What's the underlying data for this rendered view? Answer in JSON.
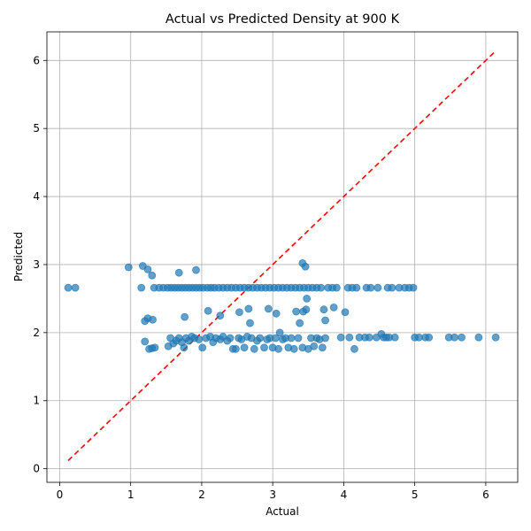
{
  "chart_data": {
    "type": "scatter",
    "title": "Actual vs Predicted Density at 900 K",
    "xlabel": "Actual",
    "ylabel": "Predicted",
    "xlim": [
      -0.18,
      6.45
    ],
    "ylim": [
      -0.2,
      6.42
    ],
    "xticks": [
      "0",
      "1",
      "2",
      "3",
      "4",
      "5",
      "6"
    ],
    "yticks": [
      "0",
      "1",
      "2",
      "3",
      "4",
      "5",
      "6"
    ],
    "grid": true,
    "point_color": "#1f77b4",
    "reference_line": {
      "style": "dashed",
      "color": "#ff0000",
      "from": [
        0.12,
        0.12
      ],
      "to": [
        6.14,
        6.14
      ]
    },
    "series": [
      {
        "points": [
          [
            0.12,
            2.66
          ],
          [
            0.22,
            2.66
          ],
          [
            0.97,
            2.96
          ],
          [
            1.15,
            2.66
          ],
          [
            1.17,
            2.98
          ],
          [
            1.24,
            2.93
          ],
          [
            1.3,
            2.84
          ],
          [
            1.33,
            2.66
          ],
          [
            1.4,
            2.66
          ],
          [
            1.46,
            2.66
          ],
          [
            1.52,
            2.66
          ],
          [
            1.57,
            2.66
          ],
          [
            1.62,
            2.66
          ],
          [
            1.67,
            2.66
          ],
          [
            1.72,
            2.66
          ],
          [
            1.77,
            2.66
          ],
          [
            1.82,
            2.66
          ],
          [
            1.87,
            2.66
          ],
          [
            1.92,
            2.66
          ],
          [
            1.97,
            2.66
          ],
          [
            2.02,
            2.66
          ],
          [
            2.08,
            2.66
          ],
          [
            2.13,
            2.66
          ],
          [
            2.18,
            2.66
          ],
          [
            2.24,
            2.66
          ],
          [
            2.3,
            2.66
          ],
          [
            2.36,
            2.66
          ],
          [
            2.42,
            2.66
          ],
          [
            2.48,
            2.66
          ],
          [
            2.54,
            2.66
          ],
          [
            2.6,
            2.66
          ],
          [
            2.66,
            2.66
          ],
          [
            2.72,
            2.66
          ],
          [
            2.78,
            2.66
          ],
          [
            2.84,
            2.66
          ],
          [
            2.9,
            2.66
          ],
          [
            2.96,
            2.66
          ],
          [
            3.02,
            2.66
          ],
          [
            3.08,
            2.66
          ],
          [
            3.14,
            2.66
          ],
          [
            3.2,
            2.66
          ],
          [
            3.26,
            2.66
          ],
          [
            3.32,
            2.66
          ],
          [
            3.38,
            2.66
          ],
          [
            3.44,
            2.66
          ],
          [
            3.5,
            2.66
          ],
          [
            3.56,
            2.66
          ],
          [
            3.62,
            2.66
          ],
          [
            3.68,
            2.66
          ],
          [
            3.78,
            2.66
          ],
          [
            3.84,
            2.66
          ],
          [
            3.9,
            2.66
          ],
          [
            4.06,
            2.66
          ],
          [
            4.12,
            2.66
          ],
          [
            4.18,
            2.66
          ],
          [
            4.32,
            2.66
          ],
          [
            4.38,
            2.66
          ],
          [
            4.48,
            2.66
          ],
          [
            4.62,
            2.66
          ],
          [
            4.68,
            2.66
          ],
          [
            4.78,
            2.66
          ],
          [
            4.86,
            2.66
          ],
          [
            4.92,
            2.66
          ],
          [
            4.98,
            2.66
          ],
          [
            1.68,
            2.88
          ],
          [
            1.92,
            2.92
          ],
          [
            3.42,
            3.02
          ],
          [
            3.46,
            2.97
          ],
          [
            3.48,
            2.5
          ],
          [
            1.2,
            2.17
          ],
          [
            1.24,
            2.21
          ],
          [
            1.31,
            2.19
          ],
          [
            1.76,
            2.23
          ],
          [
            2.09,
            2.32
          ],
          [
            2.26,
            2.25
          ],
          [
            2.53,
            2.3
          ],
          [
            2.66,
            2.35
          ],
          [
            2.68,
            2.14
          ],
          [
            2.94,
            2.35
          ],
          [
            3.05,
            2.28
          ],
          [
            3.33,
            2.31
          ],
          [
            3.38,
            2.14
          ],
          [
            3.43,
            2.31
          ],
          [
            3.47,
            2.34
          ],
          [
            3.72,
            2.34
          ],
          [
            3.74,
            2.18
          ],
          [
            3.86,
            2.37
          ],
          [
            4.02,
            2.3
          ],
          [
            1.2,
            1.87
          ],
          [
            1.26,
            1.76
          ],
          [
            1.3,
            1.77
          ],
          [
            1.34,
            1.78
          ],
          [
            1.53,
            1.8
          ],
          [
            1.56,
            1.92
          ],
          [
            1.6,
            1.84
          ],
          [
            1.64,
            1.88
          ],
          [
            1.68,
            1.92
          ],
          [
            1.72,
            1.86
          ],
          [
            1.75,
            1.78
          ],
          [
            1.78,
            1.92
          ],
          [
            1.82,
            1.88
          ],
          [
            1.86,
            1.94
          ],
          [
            1.9,
            1.92
          ],
          [
            1.96,
            1.9
          ],
          [
            2.01,
            1.78
          ],
          [
            2.06,
            1.92
          ],
          [
            2.12,
            1.94
          ],
          [
            2.16,
            1.86
          ],
          [
            2.2,
            1.92
          ],
          [
            2.26,
            1.9
          ],
          [
            2.3,
            1.94
          ],
          [
            2.36,
            1.88
          ],
          [
            2.4,
            1.92
          ],
          [
            2.44,
            1.76
          ],
          [
            2.48,
            1.76
          ],
          [
            2.52,
            1.92
          ],
          [
            2.56,
            1.9
          ],
          [
            2.6,
            1.78
          ],
          [
            2.64,
            1.94
          ],
          [
            2.7,
            1.92
          ],
          [
            2.74,
            1.76
          ],
          [
            2.78,
            1.88
          ],
          [
            2.82,
            1.92
          ],
          [
            2.88,
            1.78
          ],
          [
            2.92,
            1.9
          ],
          [
            2.96,
            1.92
          ],
          [
            3.0,
            1.78
          ],
          [
            3.04,
            1.92
          ],
          [
            3.08,
            1.76
          ],
          [
            3.1,
            2.0
          ],
          [
            3.14,
            1.9
          ],
          [
            3.18,
            1.92
          ],
          [
            3.22,
            1.78
          ],
          [
            3.26,
            1.92
          ],
          [
            3.3,
            1.76
          ],
          [
            3.36,
            1.92
          ],
          [
            3.42,
            1.78
          ],
          [
            3.5,
            1.76
          ],
          [
            3.54,
            1.92
          ],
          [
            3.58,
            1.8
          ],
          [
            3.62,
            1.92
          ],
          [
            3.66,
            1.9
          ],
          [
            3.7,
            1.78
          ],
          [
            3.74,
            1.92
          ],
          [
            3.96,
            1.93
          ],
          [
            4.08,
            1.93
          ],
          [
            4.15,
            1.76
          ],
          [
            4.22,
            1.93
          ],
          [
            4.3,
            1.93
          ],
          [
            4.36,
            1.93
          ],
          [
            4.46,
            1.93
          ],
          [
            4.53,
            1.98
          ],
          [
            4.56,
            1.93
          ],
          [
            4.6,
            1.93
          ],
          [
            4.64,
            1.93
          ],
          [
            4.72,
            1.93
          ],
          [
            5.0,
            1.93
          ],
          [
            5.06,
            1.93
          ],
          [
            5.15,
            1.93
          ],
          [
            5.2,
            1.93
          ],
          [
            5.48,
            1.93
          ],
          [
            5.56,
            1.93
          ],
          [
            5.66,
            1.93
          ],
          [
            5.9,
            1.93
          ],
          [
            6.14,
            1.93
          ]
        ]
      }
    ]
  }
}
